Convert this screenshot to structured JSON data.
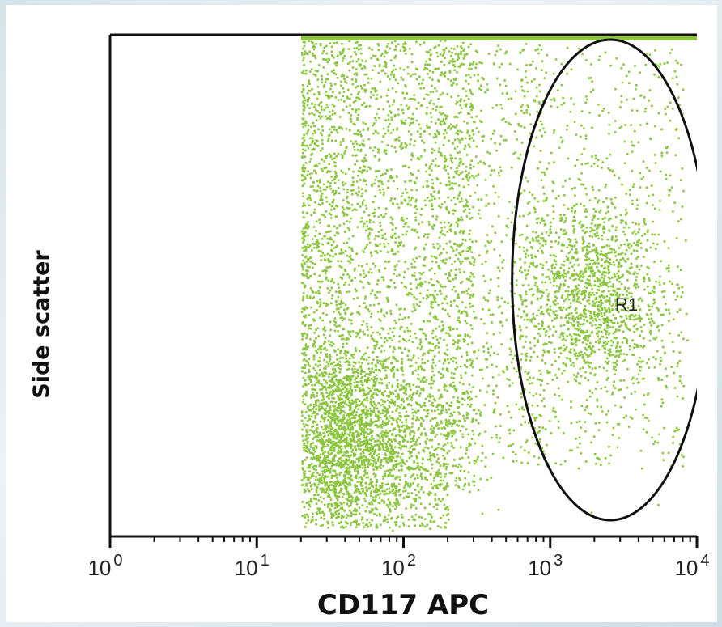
{
  "chart_data": {
    "type": "scatter",
    "xlabel": "CD117 APC",
    "ylabel": "Side scatter",
    "x_scale": "log",
    "xlim": [
      1,
      10000
    ],
    "x_ticks": [
      {
        "base": "10",
        "exp": "0",
        "value": 1
      },
      {
        "base": "10",
        "exp": "1",
        "value": 10
      },
      {
        "base": "10",
        "exp": "2",
        "value": 100
      },
      {
        "base": "10",
        "exp": "3",
        "value": 1000
      },
      {
        "base": "10",
        "exp": "4",
        "value": 10000
      }
    ],
    "y_ticks_shown": false,
    "point_color": "#8cc63f",
    "populations": [
      {
        "description": "CD117-negative/low events",
        "x_range": [
          20,
          400
        ],
        "density": "high"
      },
      {
        "description": "CD117-positive events",
        "x_range": [
          500,
          8000
        ],
        "density": "low"
      }
    ],
    "gates": [
      {
        "label": "R1",
        "shape": "ellipse",
        "center_x": 2500,
        "x_extent": [
          550,
          12000
        ]
      }
    ],
    "grid": false,
    "legend": "none"
  }
}
